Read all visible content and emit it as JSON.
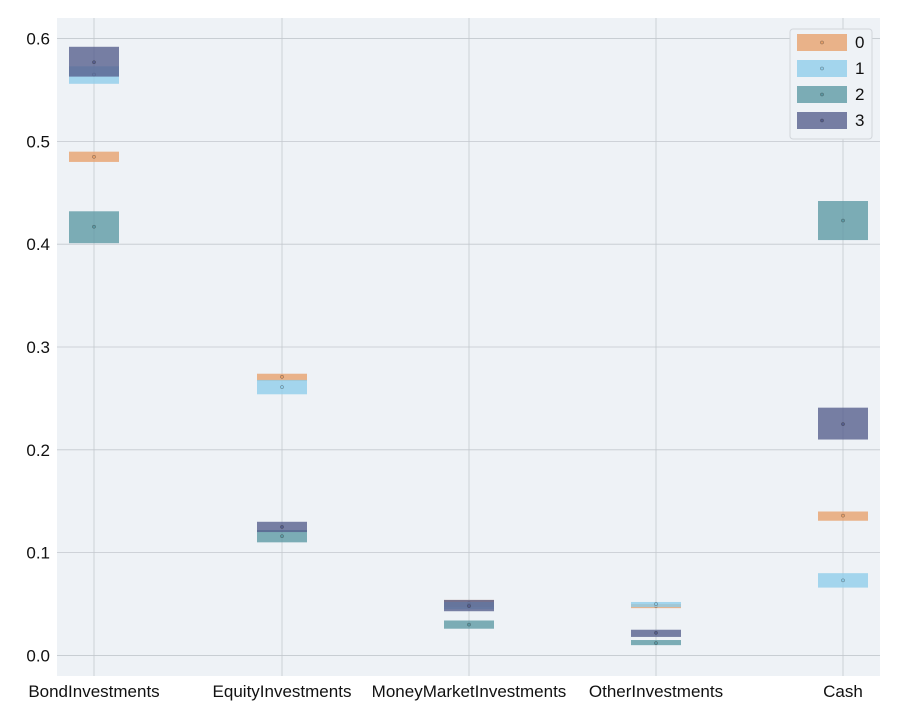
{
  "chart_data": {
    "type": "box",
    "categories": [
      "BondInvestments",
      "EquityInvestments",
      "MoneyMarketInvestments",
      "OtherInvestments",
      "Cash"
    ],
    "ylim": [
      -0.02,
      0.62
    ],
    "yticks": [
      0.0,
      0.1,
      0.2,
      0.3,
      0.4,
      0.5,
      0.6
    ],
    "ytick_labels": [
      "0.0",
      "0.1",
      "0.2",
      "0.3",
      "0.4",
      "0.5",
      "0.6"
    ],
    "grid": true,
    "legend_position": "top-right",
    "series": [
      {
        "name": "0",
        "color": "#e8a06a",
        "values": [
          {
            "low": 0.48,
            "high": 0.49,
            "center": 0.485
          },
          {
            "low": 0.267,
            "high": 0.274,
            "center": 0.271
          },
          {
            "low": 0.047,
            "high": 0.054,
            "center": 0.051
          },
          {
            "low": 0.046,
            "high": 0.05,
            "center": 0.048
          },
          {
            "low": 0.131,
            "high": 0.14,
            "center": 0.136
          }
        ]
      },
      {
        "name": "1",
        "color": "#8ecdea",
        "values": [
          {
            "low": 0.556,
            "high": 0.573,
            "center": 0.565
          },
          {
            "low": 0.254,
            "high": 0.268,
            "center": 0.261
          },
          {
            "low": 0.045,
            "high": 0.052,
            "center": 0.049
          },
          {
            "low": 0.047,
            "high": 0.052,
            "center": 0.05
          },
          {
            "low": 0.066,
            "high": 0.08,
            "center": 0.073
          }
        ]
      },
      {
        "name": "2",
        "color": "#5b98a3",
        "values": [
          {
            "low": 0.401,
            "high": 0.432,
            "center": 0.417
          },
          {
            "low": 0.11,
            "high": 0.122,
            "center": 0.116
          },
          {
            "low": 0.026,
            "high": 0.034,
            "center": 0.03
          },
          {
            "low": 0.01,
            "high": 0.015,
            "center": 0.012
          },
          {
            "low": 0.404,
            "high": 0.442,
            "center": 0.423
          }
        ]
      },
      {
        "name": "3",
        "color": "#555d8c",
        "values": [
          {
            "low": 0.563,
            "high": 0.592,
            "center": 0.577
          },
          {
            "low": 0.12,
            "high": 0.13,
            "center": 0.125
          },
          {
            "low": 0.043,
            "high": 0.054,
            "center": 0.048
          },
          {
            "low": 0.018,
            "high": 0.025,
            "center": 0.022
          },
          {
            "low": 0.21,
            "high": 0.241,
            "center": 0.225
          }
        ]
      }
    ]
  },
  "colors": {
    "plot_background": "#eef2f6",
    "grid": "#c3c8ce"
  }
}
